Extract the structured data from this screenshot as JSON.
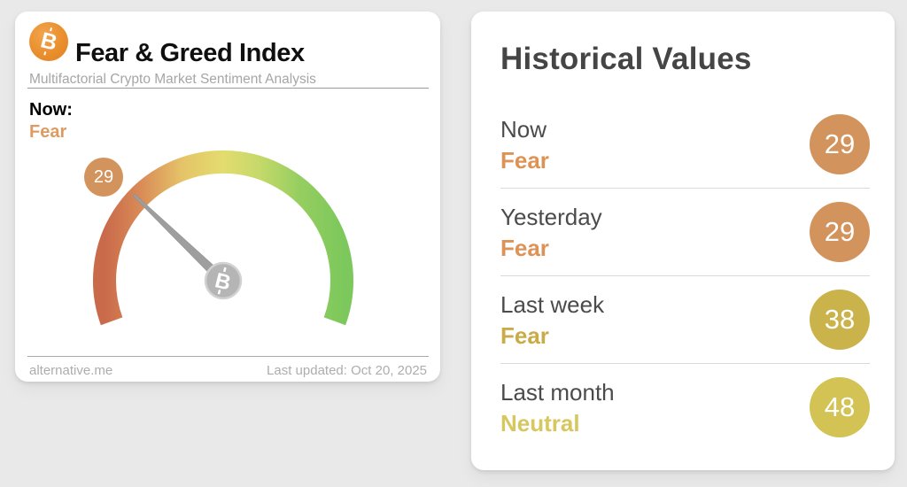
{
  "left_card": {
    "title": "Fear & Greed Index",
    "subtitle": "Multifactorial Crypto Market Sentiment Analysis",
    "bitcoin_glyph": "B",
    "now_label": "Now:",
    "now_status": "Fear",
    "now_status_color": "#dd9b62",
    "gauge": {
      "value": 29,
      "min": 0,
      "max": 100,
      "badge_color": "#d2935c",
      "arc_colors": [
        "#c96a4b",
        "#d98a57",
        "#e5c468",
        "#e3dc6e",
        "#c6d96a",
        "#96ce60",
        "#7dc85c"
      ],
      "needle_color": "#9e9e9e",
      "hub_color": "#b5b5b5"
    },
    "footer_source": "alternative.me",
    "footer_updated": "Last updated: Oct 20, 2025"
  },
  "right_card": {
    "title": "Historical Values",
    "rows": [
      {
        "label": "Now",
        "status": "Fear",
        "value": "29",
        "badge_color": "#d2935c",
        "status_color": "#dd9356"
      },
      {
        "label": "Yesterday",
        "status": "Fear",
        "value": "29",
        "badge_color": "#d2935c",
        "status_color": "#dd9356"
      },
      {
        "label": "Last week",
        "status": "Fear",
        "value": "38",
        "badge_color": "#cbb34b",
        "status_color": "#c9ac47"
      },
      {
        "label": "Last month",
        "status": "Neutral",
        "value": "48",
        "badge_color": "#d3c355",
        "status_color": "#d6c75f"
      }
    ]
  }
}
